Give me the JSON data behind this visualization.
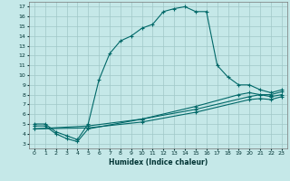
{
  "title": "",
  "xlabel": "Humidex (Indice chaleur)",
  "bg_color": "#c5e8e8",
  "grid_color": "#a0c8c8",
  "line_color": "#006868",
  "xlim": [
    -0.5,
    23.5
  ],
  "ylim": [
    2.5,
    17.5
  ],
  "xticks": [
    0,
    1,
    2,
    3,
    4,
    5,
    6,
    7,
    8,
    9,
    10,
    11,
    12,
    13,
    14,
    15,
    16,
    17,
    18,
    19,
    20,
    21,
    22,
    23
  ],
  "yticks": [
    3,
    4,
    5,
    6,
    7,
    8,
    9,
    10,
    11,
    12,
    13,
    14,
    15,
    16,
    17
  ],
  "line1_x": [
    0,
    1,
    2,
    3,
    4,
    5,
    6,
    7,
    8,
    9,
    10,
    11,
    12,
    13,
    14,
    15,
    16,
    17,
    18,
    19,
    20,
    21,
    22,
    23
  ],
  "line1_y": [
    5.0,
    5.0,
    4.2,
    3.8,
    3.4,
    5.0,
    9.5,
    12.2,
    13.5,
    14.0,
    14.8,
    15.2,
    16.5,
    16.8,
    17.0,
    16.5,
    16.5,
    11.0,
    9.8,
    9.0,
    9.0,
    8.5,
    8.2,
    8.5
  ],
  "line2_x": [
    0,
    1,
    2,
    3,
    4,
    5,
    10,
    15,
    19,
    20,
    21,
    22,
    23
  ],
  "line2_y": [
    4.8,
    4.8,
    4.0,
    3.5,
    3.2,
    4.5,
    5.5,
    6.8,
    8.0,
    8.2,
    8.0,
    8.0,
    8.3
  ],
  "line3_x": [
    0,
    5,
    10,
    15,
    20,
    21,
    22,
    23
  ],
  "line3_y": [
    4.5,
    4.8,
    5.5,
    6.5,
    7.8,
    8.0,
    7.8,
    8.0
  ],
  "line4_x": [
    0,
    5,
    10,
    15,
    20,
    21,
    22,
    23
  ],
  "line4_y": [
    4.5,
    4.6,
    5.2,
    6.2,
    7.5,
    7.6,
    7.5,
    7.8
  ]
}
